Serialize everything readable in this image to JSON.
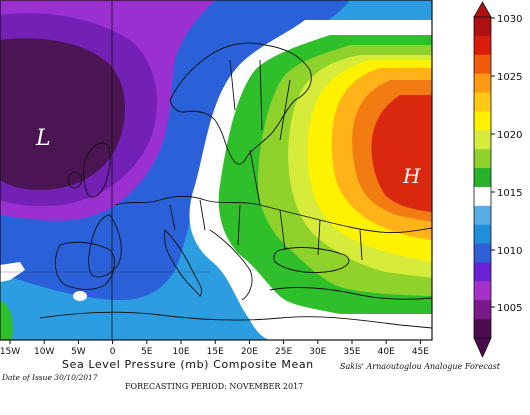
{
  "map": {
    "title": "Sea Level Pressure (mb) Composite Mean",
    "attribution": "Sakis' Arnaoutoglou Analogue Forecast",
    "issue_date": "Date of Issue 30/10/2017",
    "forecasting_period": "FORECASTING PERIOD: NOVEMBER 2017",
    "low_label": "L",
    "high_label": "H",
    "x_axis_ticks": [
      "15W",
      "10W",
      "5W",
      "0",
      "5E",
      "10E",
      "15E",
      "20E",
      "25E",
      "30E",
      "35E",
      "40E",
      "45E"
    ]
  },
  "colorbar": {
    "ticks": [
      "1005",
      "1010",
      "1015",
      "1020",
      "1025",
      "1030"
    ],
    "colors": [
      "#4b0d4f",
      "#7a1a8a",
      "#a530c9",
      "#6b22d6",
      "#2f5ed8",
      "#1f8fdc",
      "#5aaee8",
      "#ffffff",
      "#27b327",
      "#8fd22b",
      "#d7ec3a",
      "#fff000",
      "#ffc814",
      "#ff9a12",
      "#f05a0a",
      "#d81c0c",
      "#b01010"
    ]
  },
  "pressure_bands": {
    "low_center_color": "#4b1553",
    "purple_color": "#7a22c4",
    "blue_color": "#2b61d8",
    "light_blue_color": "#2b9de0",
    "neutral_color": "#ffffff",
    "green_color": "#2fbf2a",
    "yellow_green_color": "#c6e63a",
    "yellow_color": "#fff200",
    "orange_color": "#ffb319",
    "dark_orange_color": "#f27c12",
    "red_color": "#d9280e"
  }
}
